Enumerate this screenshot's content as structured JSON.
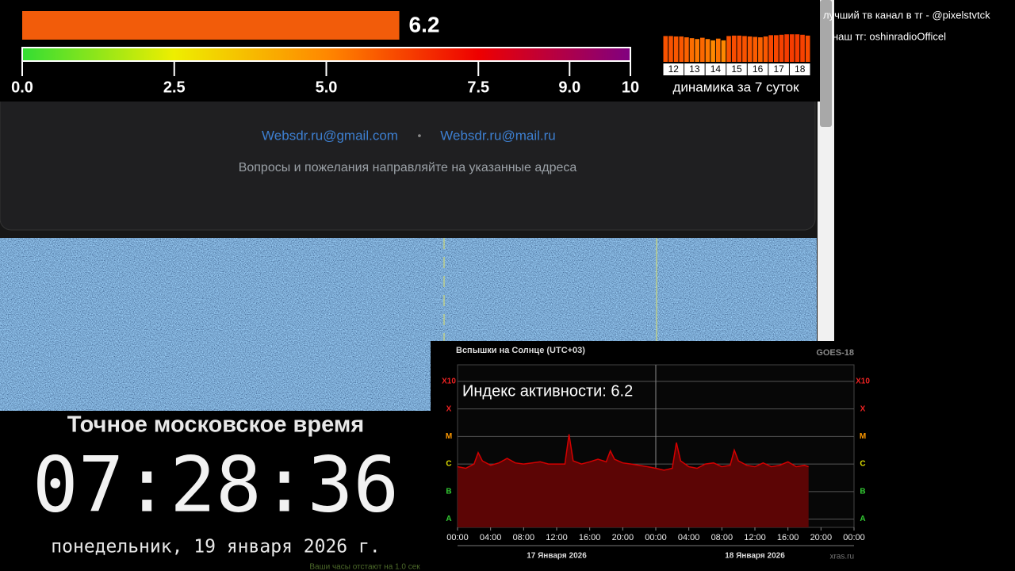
{
  "overlay": {
    "right_lines": [
      "лучший тв канал в тг - @pixelstvtck",
      "наш тг: oshinradioOfficel"
    ]
  },
  "gauge": {
    "value": 6.2,
    "xlim": [
      0,
      10
    ],
    "ticks": [
      {
        "value": 0,
        "label": "0.0"
      },
      2.5,
      {
        "value": 5,
        "label": "5.0"
      },
      7.5,
      {
        "value": 9,
        "label": "9.0"
      },
      10
    ],
    "bar_color": "#f25c0a",
    "gradient": [
      "#33dd33",
      "#eeee00",
      "#ff8800",
      "#ee0000",
      "#800080"
    ]
  },
  "history": {
    "type": "bar",
    "days": [
      "12",
      "13",
      "14",
      "15",
      "16",
      "17",
      "18"
    ],
    "values": [
      [
        6.0,
        6.0,
        5.9,
        5.9
      ],
      [
        5.7,
        5.5,
        5.3,
        5.6
      ],
      [
        5.3,
        5.0,
        5.4,
        5.0
      ],
      [
        6.0,
        6.1,
        6.1,
        6.0
      ],
      [
        5.9,
        5.8,
        5.7,
        5.9
      ],
      [
        6.2,
        6.2,
        6.3,
        6.4
      ],
      [
        6.4,
        6.4,
        6.3,
        6.1
      ]
    ],
    "ylim": [
      0,
      7
    ],
    "caption": "динамика за 7 суток"
  },
  "page": {
    "emails": [
      "Websdr.ru@gmail.com",
      "Websdr.ru@mail.ru"
    ],
    "separator": "•",
    "note": "Вопросы и пожелания направляйте на указанные адреса"
  },
  "clock": {
    "title": "Точное московское время",
    "time": "07:28:36",
    "date": "понедельник, 19 января 2026 г.",
    "offset": "Ваши часы отстают на 1.0 сек"
  },
  "flares": {
    "type": "area",
    "title": "Вспышки на Солнце (UTC+03)",
    "source": "GOES-18",
    "annotation": "Индекс активности: 6.2",
    "credit": "xras.ru",
    "log_scale": true,
    "ylim": [
      5e-09,
      0.004
    ],
    "yticks": [
      {
        "value": 1e-08,
        "label": "A"
      },
      {
        "value": 1e-07,
        "label": "B"
      },
      {
        "value": 1e-06,
        "label": "C"
      },
      {
        "value": 1e-05,
        "label": "M"
      },
      {
        "value": 0.0001,
        "label": "X"
      },
      {
        "value": 0.001,
        "label": "X10"
      }
    ],
    "ytick_colors": [
      "#33cc33",
      "#33cc33",
      "#dddd00",
      "#ff9900",
      "#ee2222",
      "#ee2222"
    ],
    "xlim": [
      0,
      48
    ],
    "xticks": [
      {
        "value": 0,
        "label": "00:00"
      },
      {
        "value": 4,
        "label": "04:00"
      },
      {
        "value": 8,
        "label": "08:00"
      },
      {
        "value": 12,
        "label": "12:00"
      },
      {
        "value": 16,
        "label": "16:00"
      },
      {
        "value": 20,
        "label": "20:00"
      },
      {
        "value": 24,
        "label": "00:00"
      },
      {
        "value": 28,
        "label": "04:00"
      },
      {
        "value": 32,
        "label": "08:00"
      },
      {
        "value": 36,
        "label": "12:00"
      },
      {
        "value": 40,
        "label": "16:00"
      },
      {
        "value": 44,
        "label": "20:00"
      },
      {
        "value": 48,
        "label": "00:00"
      }
    ],
    "date_labels": [
      "17 Января 2026",
      "18 Января 2026"
    ],
    "x": [
      0,
      1,
      2,
      2.5,
      3,
      4,
      5,
      6,
      7,
      8,
      9,
      10,
      11,
      12,
      13,
      13.5,
      14,
      15,
      16,
      17,
      18,
      18.5,
      19,
      20,
      21,
      22,
      23,
      24,
      25,
      26,
      26.5,
      27,
      28,
      29,
      30,
      31,
      32,
      33,
      33.5,
      34,
      35,
      36,
      37,
      38,
      39,
      40,
      41,
      42,
      42.5
    ],
    "values": [
      8e-07,
      7e-07,
      1e-06,
      2.6e-06,
      1.3e-06,
      9e-07,
      1.1e-06,
      1.6e-06,
      1.1e-06,
      1e-06,
      1.1e-06,
      1.2e-06,
      1e-06,
      1e-06,
      1e-06,
      1.2e-05,
      1.3e-06,
      1e-06,
      1.2e-06,
      1.5e-06,
      1.2e-06,
      3e-06,
      1.5e-06,
      1.1e-06,
      1e-06,
      9e-07,
      8e-07,
      7e-07,
      6e-07,
      7e-07,
      6e-06,
      1.3e-06,
      8e-07,
      7e-07,
      1e-06,
      1.1e-06,
      8e-07,
      9e-07,
      3.2e-06,
      1.3e-06,
      9e-07,
      8e-07,
      1.1e-06,
      8e-07,
      9e-07,
      1.2e-06,
      8e-07,
      9e-07,
      8e-07
    ],
    "color": "#d40000",
    "fill": "#5c0505"
  }
}
